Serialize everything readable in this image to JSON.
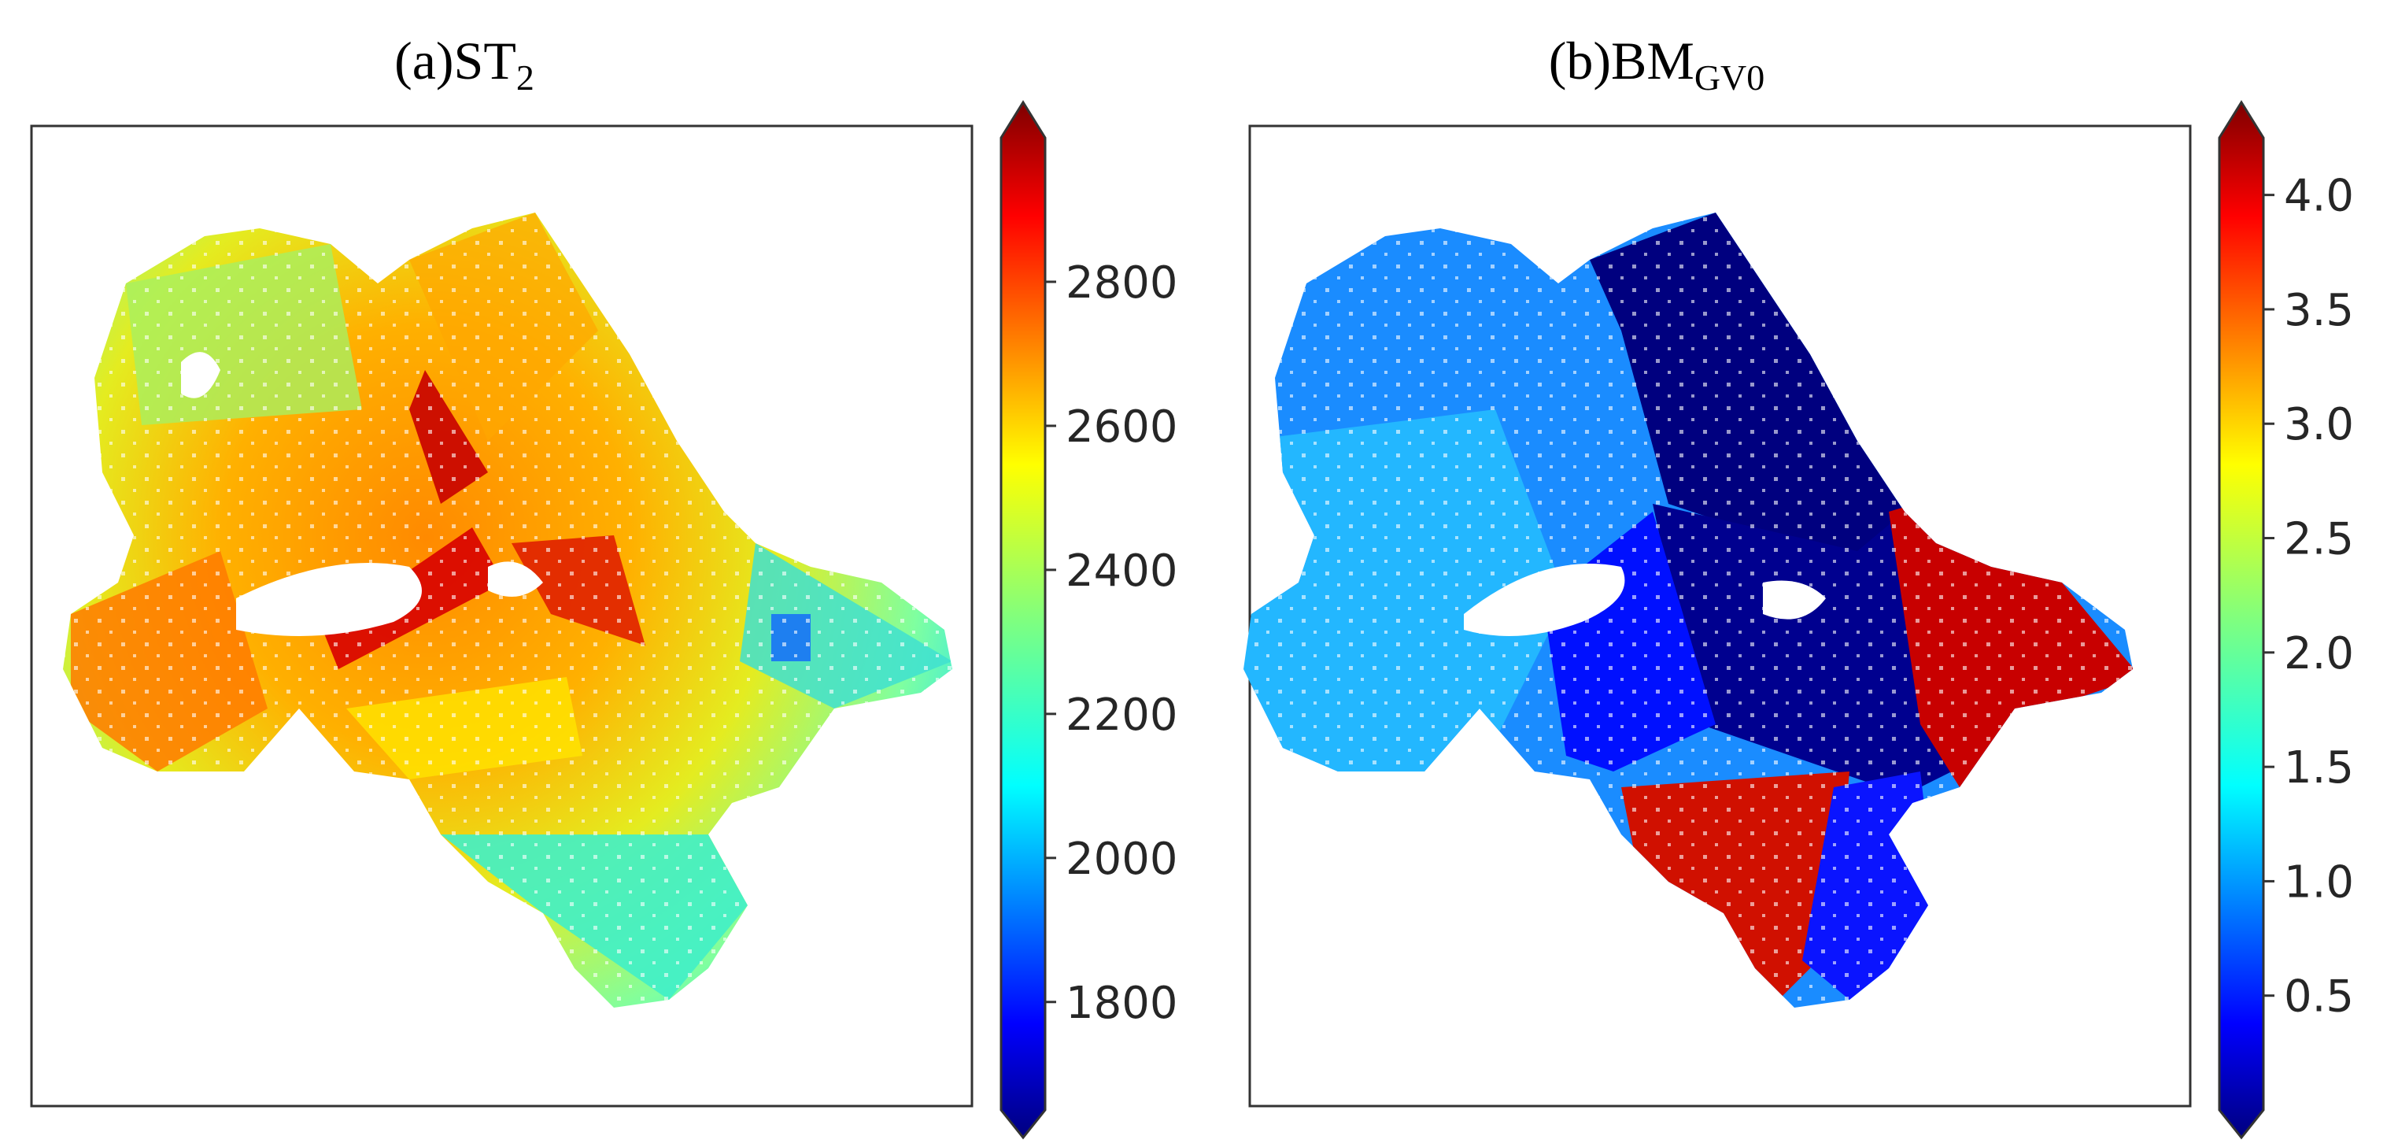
{
  "panels": [
    {
      "title_main": "(a)ST",
      "title_sub": "2",
      "colorbar": {
        "colormap": "jet",
        "range": [
          1650,
          3000
        ],
        "ticks": [
          "1800",
          "2000",
          "2200",
          "2400",
          "2600",
          "2800"
        ],
        "tick_values": [
          1800,
          2000,
          2200,
          2400,
          2600,
          2800
        ],
        "extend": "both"
      }
    },
    {
      "title_main": "(b)BM",
      "title_sub": "GV0",
      "colorbar": {
        "colormap": "jet",
        "range": [
          0,
          4.25
        ],
        "ticks": [
          "0.5",
          "1.0",
          "1.5",
          "2.0",
          "2.5",
          "3.0",
          "3.5",
          "4.0"
        ],
        "tick_values": [
          0.5,
          1.0,
          1.5,
          2.0,
          2.5,
          3.0,
          3.5,
          4.0
        ],
        "extend": "both"
      }
    }
  ],
  "colors": {
    "frame": "#333333",
    "jet": [
      "#00007f",
      "#0000ff",
      "#007fff",
      "#00ffff",
      "#7fff7f",
      "#ffff00",
      "#ff7f00",
      "#ff0000",
      "#7f0000"
    ]
  }
}
